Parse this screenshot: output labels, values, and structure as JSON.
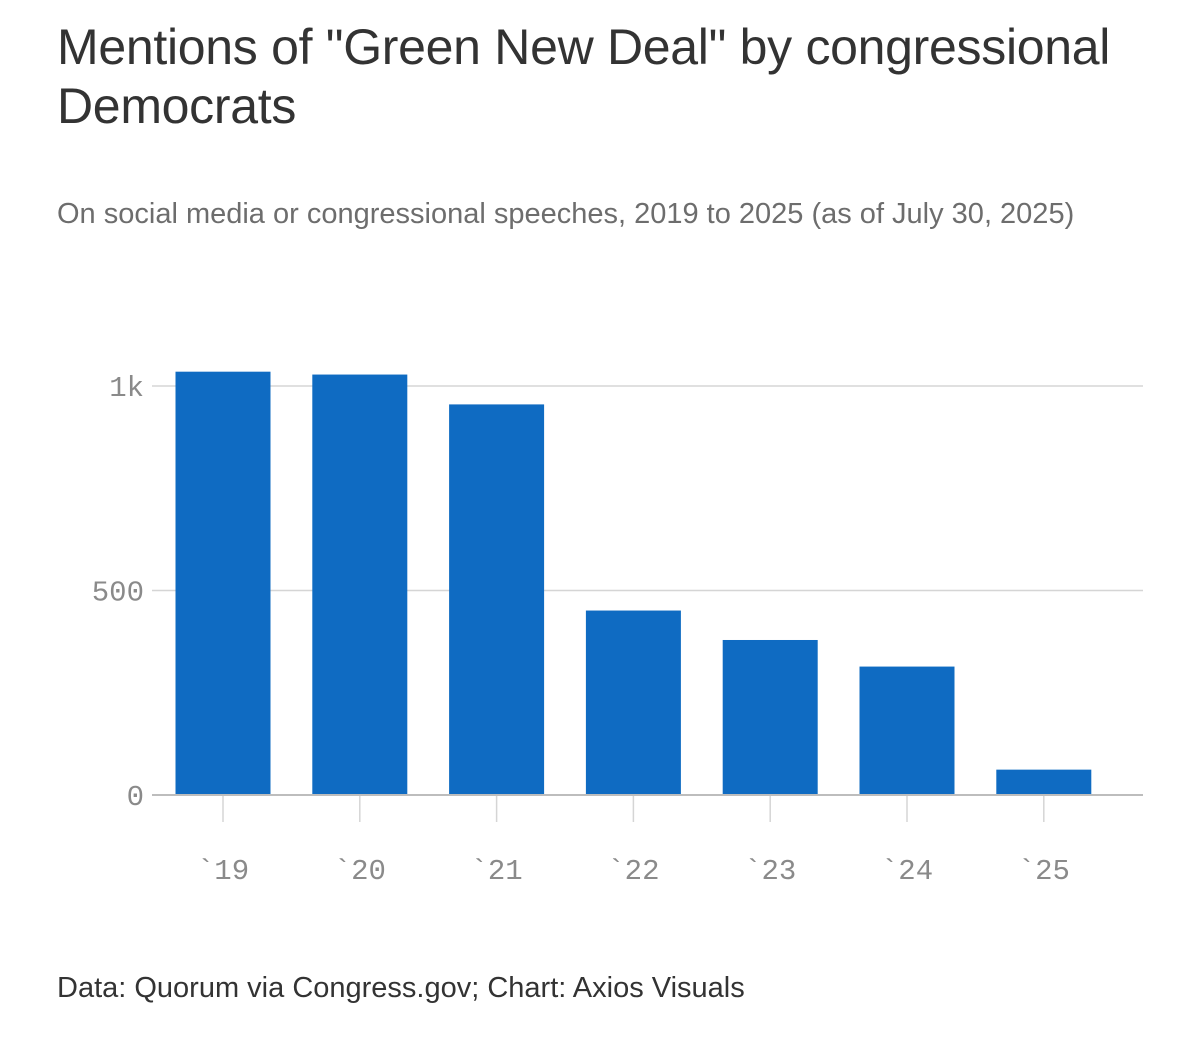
{
  "header": {
    "title": "Mentions of \"Green New Deal\" by congressional Democrats",
    "subtitle": "On social media or congressional speeches, 2019 to 2025 (as of July 30, 2025)"
  },
  "footer": {
    "source": "Data: Quorum via Congress.gov; Chart: Axios Visuals"
  },
  "colors": {
    "bar": "#0f6bc2",
    "grid": "#d5d5d5",
    "axis": "#bdbdbd",
    "tick_text": "#8a8a8a"
  },
  "chart_data": {
    "type": "bar",
    "title": "Mentions of \"Green New Deal\" by congressional Democrats",
    "subtitle": "On social media or congressional speeches, 2019 to 2025 (as of July 30, 2025)",
    "categories": [
      "`19",
      "`20",
      "`21",
      "`22",
      "`23",
      "`24",
      "`25"
    ],
    "values": [
      1035,
      1028,
      955,
      451,
      379,
      314,
      62
    ],
    "xlabel": "",
    "ylabel": "",
    "ylim": [
      0,
      1000
    ],
    "yticks": [
      0,
      500,
      1000
    ],
    "ytick_labels": [
      "0",
      "500",
      "1k"
    ],
    "grid": "horizontal",
    "legend": "none"
  }
}
